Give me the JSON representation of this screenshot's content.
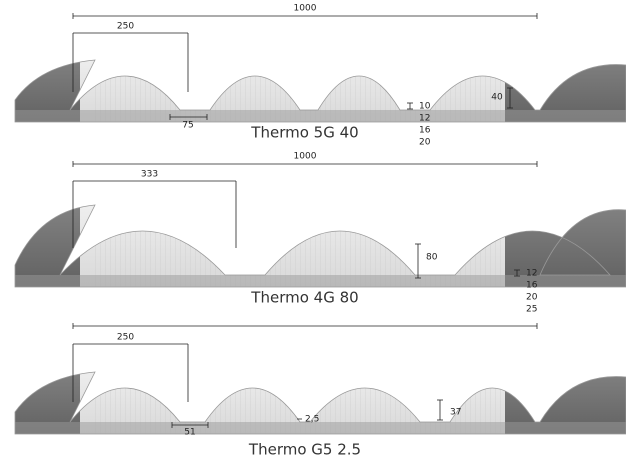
{
  "panels": [
    {
      "title": "Thermo 5G 40",
      "overall": "1000",
      "pitch": "250",
      "rib": "75",
      "height": "40",
      "thicknesses": [
        "10",
        "12",
        "16",
        "20"
      ]
    },
    {
      "title": "Thermo 4G 80",
      "overall": "1000",
      "pitch": "333",
      "height": "80",
      "thicknesses": [
        "12",
        "16",
        "20",
        "25"
      ]
    },
    {
      "title": "Thermo G5 2.5",
      "pitch": "250",
      "rib": "51",
      "wall": "2,5",
      "height": "37"
    }
  ]
}
